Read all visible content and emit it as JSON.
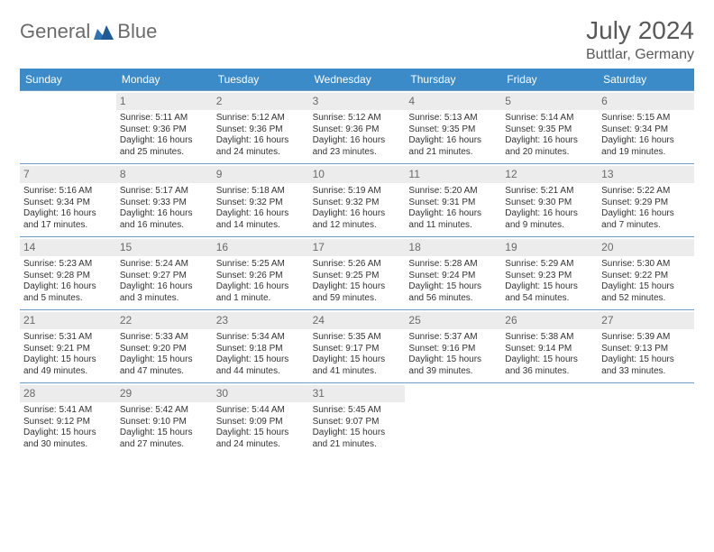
{
  "logo": {
    "text1": "General",
    "text2": "Blue"
  },
  "title": "July 2024",
  "location": "Buttlar, Germany",
  "colors": {
    "header_bg": "#3b8bc9",
    "header_text": "#ffffff",
    "daynum_bg": "#ececec",
    "daynum_text": "#6a6a6a",
    "border": "#6f9bc4",
    "body_text": "#333333",
    "logo_gray": "#6b6b6b",
    "logo_blue": "#2e74b5"
  },
  "weekdays": [
    "Sunday",
    "Monday",
    "Tuesday",
    "Wednesday",
    "Thursday",
    "Friday",
    "Saturday"
  ],
  "weeks": [
    [
      {
        "day": "",
        "sunrise": "",
        "sunset": "",
        "daylight1": "",
        "daylight2": ""
      },
      {
        "day": "1",
        "sunrise": "Sunrise: 5:11 AM",
        "sunset": "Sunset: 9:36 PM",
        "daylight1": "Daylight: 16 hours",
        "daylight2": "and 25 minutes."
      },
      {
        "day": "2",
        "sunrise": "Sunrise: 5:12 AM",
        "sunset": "Sunset: 9:36 PM",
        "daylight1": "Daylight: 16 hours",
        "daylight2": "and 24 minutes."
      },
      {
        "day": "3",
        "sunrise": "Sunrise: 5:12 AM",
        "sunset": "Sunset: 9:36 PM",
        "daylight1": "Daylight: 16 hours",
        "daylight2": "and 23 minutes."
      },
      {
        "day": "4",
        "sunrise": "Sunrise: 5:13 AM",
        "sunset": "Sunset: 9:35 PM",
        "daylight1": "Daylight: 16 hours",
        "daylight2": "and 21 minutes."
      },
      {
        "day": "5",
        "sunrise": "Sunrise: 5:14 AM",
        "sunset": "Sunset: 9:35 PM",
        "daylight1": "Daylight: 16 hours",
        "daylight2": "and 20 minutes."
      },
      {
        "day": "6",
        "sunrise": "Sunrise: 5:15 AM",
        "sunset": "Sunset: 9:34 PM",
        "daylight1": "Daylight: 16 hours",
        "daylight2": "and 19 minutes."
      }
    ],
    [
      {
        "day": "7",
        "sunrise": "Sunrise: 5:16 AM",
        "sunset": "Sunset: 9:34 PM",
        "daylight1": "Daylight: 16 hours",
        "daylight2": "and 17 minutes."
      },
      {
        "day": "8",
        "sunrise": "Sunrise: 5:17 AM",
        "sunset": "Sunset: 9:33 PM",
        "daylight1": "Daylight: 16 hours",
        "daylight2": "and 16 minutes."
      },
      {
        "day": "9",
        "sunrise": "Sunrise: 5:18 AM",
        "sunset": "Sunset: 9:32 PM",
        "daylight1": "Daylight: 16 hours",
        "daylight2": "and 14 minutes."
      },
      {
        "day": "10",
        "sunrise": "Sunrise: 5:19 AM",
        "sunset": "Sunset: 9:32 PM",
        "daylight1": "Daylight: 16 hours",
        "daylight2": "and 12 minutes."
      },
      {
        "day": "11",
        "sunrise": "Sunrise: 5:20 AM",
        "sunset": "Sunset: 9:31 PM",
        "daylight1": "Daylight: 16 hours",
        "daylight2": "and 11 minutes."
      },
      {
        "day": "12",
        "sunrise": "Sunrise: 5:21 AM",
        "sunset": "Sunset: 9:30 PM",
        "daylight1": "Daylight: 16 hours",
        "daylight2": "and 9 minutes."
      },
      {
        "day": "13",
        "sunrise": "Sunrise: 5:22 AM",
        "sunset": "Sunset: 9:29 PM",
        "daylight1": "Daylight: 16 hours",
        "daylight2": "and 7 minutes."
      }
    ],
    [
      {
        "day": "14",
        "sunrise": "Sunrise: 5:23 AM",
        "sunset": "Sunset: 9:28 PM",
        "daylight1": "Daylight: 16 hours",
        "daylight2": "and 5 minutes."
      },
      {
        "day": "15",
        "sunrise": "Sunrise: 5:24 AM",
        "sunset": "Sunset: 9:27 PM",
        "daylight1": "Daylight: 16 hours",
        "daylight2": "and 3 minutes."
      },
      {
        "day": "16",
        "sunrise": "Sunrise: 5:25 AM",
        "sunset": "Sunset: 9:26 PM",
        "daylight1": "Daylight: 16 hours",
        "daylight2": "and 1 minute."
      },
      {
        "day": "17",
        "sunrise": "Sunrise: 5:26 AM",
        "sunset": "Sunset: 9:25 PM",
        "daylight1": "Daylight: 15 hours",
        "daylight2": "and 59 minutes."
      },
      {
        "day": "18",
        "sunrise": "Sunrise: 5:28 AM",
        "sunset": "Sunset: 9:24 PM",
        "daylight1": "Daylight: 15 hours",
        "daylight2": "and 56 minutes."
      },
      {
        "day": "19",
        "sunrise": "Sunrise: 5:29 AM",
        "sunset": "Sunset: 9:23 PM",
        "daylight1": "Daylight: 15 hours",
        "daylight2": "and 54 minutes."
      },
      {
        "day": "20",
        "sunrise": "Sunrise: 5:30 AM",
        "sunset": "Sunset: 9:22 PM",
        "daylight1": "Daylight: 15 hours",
        "daylight2": "and 52 minutes."
      }
    ],
    [
      {
        "day": "21",
        "sunrise": "Sunrise: 5:31 AM",
        "sunset": "Sunset: 9:21 PM",
        "daylight1": "Daylight: 15 hours",
        "daylight2": "and 49 minutes."
      },
      {
        "day": "22",
        "sunrise": "Sunrise: 5:33 AM",
        "sunset": "Sunset: 9:20 PM",
        "daylight1": "Daylight: 15 hours",
        "daylight2": "and 47 minutes."
      },
      {
        "day": "23",
        "sunrise": "Sunrise: 5:34 AM",
        "sunset": "Sunset: 9:18 PM",
        "daylight1": "Daylight: 15 hours",
        "daylight2": "and 44 minutes."
      },
      {
        "day": "24",
        "sunrise": "Sunrise: 5:35 AM",
        "sunset": "Sunset: 9:17 PM",
        "daylight1": "Daylight: 15 hours",
        "daylight2": "and 41 minutes."
      },
      {
        "day": "25",
        "sunrise": "Sunrise: 5:37 AM",
        "sunset": "Sunset: 9:16 PM",
        "daylight1": "Daylight: 15 hours",
        "daylight2": "and 39 minutes."
      },
      {
        "day": "26",
        "sunrise": "Sunrise: 5:38 AM",
        "sunset": "Sunset: 9:14 PM",
        "daylight1": "Daylight: 15 hours",
        "daylight2": "and 36 minutes."
      },
      {
        "day": "27",
        "sunrise": "Sunrise: 5:39 AM",
        "sunset": "Sunset: 9:13 PM",
        "daylight1": "Daylight: 15 hours",
        "daylight2": "and 33 minutes."
      }
    ],
    [
      {
        "day": "28",
        "sunrise": "Sunrise: 5:41 AM",
        "sunset": "Sunset: 9:12 PM",
        "daylight1": "Daylight: 15 hours",
        "daylight2": "and 30 minutes."
      },
      {
        "day": "29",
        "sunrise": "Sunrise: 5:42 AM",
        "sunset": "Sunset: 9:10 PM",
        "daylight1": "Daylight: 15 hours",
        "daylight2": "and 27 minutes."
      },
      {
        "day": "30",
        "sunrise": "Sunrise: 5:44 AM",
        "sunset": "Sunset: 9:09 PM",
        "daylight1": "Daylight: 15 hours",
        "daylight2": "and 24 minutes."
      },
      {
        "day": "31",
        "sunrise": "Sunrise: 5:45 AM",
        "sunset": "Sunset: 9:07 PM",
        "daylight1": "Daylight: 15 hours",
        "daylight2": "and 21 minutes."
      },
      {
        "day": "",
        "sunrise": "",
        "sunset": "",
        "daylight1": "",
        "daylight2": ""
      },
      {
        "day": "",
        "sunrise": "",
        "sunset": "",
        "daylight1": "",
        "daylight2": ""
      },
      {
        "day": "",
        "sunrise": "",
        "sunset": "",
        "daylight1": "",
        "daylight2": ""
      }
    ]
  ]
}
